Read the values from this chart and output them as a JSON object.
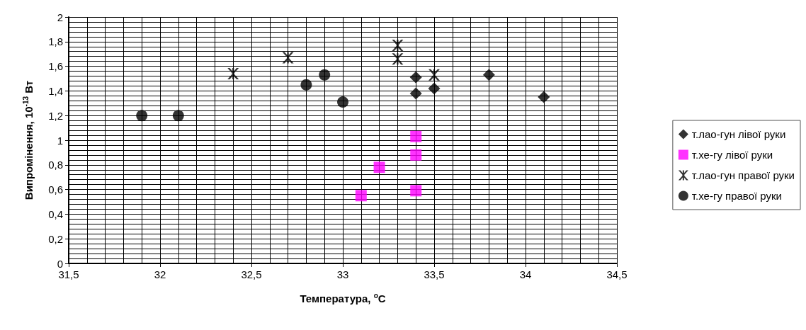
{
  "chart_data": {
    "type": "scatter",
    "xlabel": "Температура, $^{o}$C",
    "ylabel": "Випромінення, 10$^{-13}$ Вт",
    "xlim": [
      31.5,
      34.5
    ],
    "xticks": [
      {
        "value": 31.5,
        "label": "31,5"
      },
      32,
      {
        "value": 32.5,
        "label": "32,5"
      },
      33,
      {
        "value": 33.5,
        "label": "33,5"
      },
      34,
      {
        "value": 34.5,
        "label": "34,5"
      }
    ],
    "ylim": [
      0,
      2
    ],
    "yticks": [
      0,
      {
        "value": 0.2,
        "label": "0,2"
      },
      {
        "value": 0.4,
        "label": "0,4"
      },
      {
        "value": 0.6,
        "label": "0,6"
      },
      {
        "value": 0.8,
        "label": "0,8"
      },
      1,
      {
        "value": 1.2,
        "label": "1,2"
      },
      {
        "value": 1.4,
        "label": "1,4"
      },
      {
        "value": 1.6,
        "label": "1,6"
      },
      {
        "value": 1.8,
        "label": "1,8"
      },
      2
    ],
    "grid": true,
    "legend": "right",
    "series": [
      {
        "name": "т.лао-гун лівої руки",
        "color": "#000000",
        "marker": "diamond",
        "x": [
          33.4,
          33.4,
          33.5,
          33.8,
          34.1
        ],
        "values": [
          1.51,
          1.38,
          1.42,
          1.53,
          1.35
        ]
      },
      {
        "name": "т.хе-гу лівої руки",
        "color": "#ff00ff",
        "marker": "square",
        "x": [
          33.1,
          33.2,
          33.4,
          33.4,
          33.4
        ],
        "values": [
          0.55,
          0.78,
          1.03,
          0.88,
          0.59
        ]
      },
      {
        "name": "т.лао-гун правої руки",
        "color": "#000000",
        "marker": "star",
        "x": [
          32.4,
          32.7,
          33.3,
          33.3,
          33.5
        ],
        "values": [
          1.54,
          1.67,
          1.77,
          1.66,
          1.53
        ]
      },
      {
        "name": "т.хе-гу правої руки",
        "color": "#000000",
        "marker": "circle",
        "x": [
          31.9,
          32.1,
          32.8,
          32.9,
          33.0
        ],
        "values": [
          1.2,
          1.2,
          1.45,
          1.53,
          1.31
        ]
      }
    ]
  }
}
